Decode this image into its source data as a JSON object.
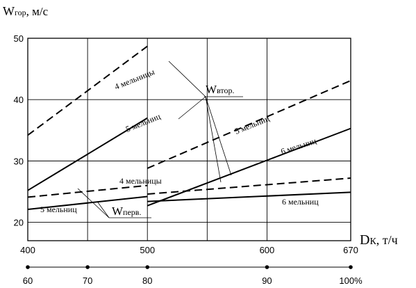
{
  "chart_data": {
    "type": "line",
    "ylabel_main": "W",
    "ylabel_sub": "гор",
    "ylabel_unit": ", м/с",
    "xlabel_main": "D",
    "xlabel_sub": "К",
    "xlabel_unit": ", т/ч",
    "xlim": [
      400,
      670
    ],
    "ylim": [
      17,
      50
    ],
    "x_ticks": [
      "400",
      "500",
      "600",
      "670"
    ],
    "x_tick_values": [
      400,
      500,
      600,
      670
    ],
    "y_ticks": [
      "50",
      "40",
      "30",
      "20"
    ],
    "y_tick_values": [
      50,
      40,
      30,
      20
    ],
    "vertical_gridlines": [
      400,
      450,
      500,
      550,
      600,
      670
    ],
    "secondary_axis": {
      "ticks": [
        "60",
        "70",
        "80",
        "90",
        "100%"
      ],
      "tick_positions": [
        400,
        450,
        500,
        600,
        670
      ]
    },
    "series": [
      {
        "name": "4 мельницы",
        "style": "dashed",
        "points": [
          [
            400,
            34.2
          ],
          [
            500,
            48.7
          ]
        ]
      },
      {
        "name": "5 мельниц",
        "style": "solid",
        "points": [
          [
            400,
            25.2
          ],
          [
            500,
            37.0
          ]
        ]
      },
      {
        "name": "4 мельницы",
        "style": "dashed",
        "points": [
          [
            400,
            24.1
          ],
          [
            500,
            26.0
          ]
        ]
      },
      {
        "name": "5 мельниц",
        "style": "solid",
        "points": [
          [
            400,
            22.1
          ],
          [
            500,
            24.2
          ]
        ]
      },
      {
        "name": "5 мельниц",
        "style": "dashed",
        "points": [
          [
            500,
            28.8
          ],
          [
            670,
            43.1
          ]
        ]
      },
      {
        "name": "6 мельниц",
        "style": "solid",
        "points": [
          [
            500,
            22.7
          ],
          [
            670,
            35.3
          ]
        ]
      },
      {
        "name": "",
        "style": "dashed",
        "points": [
          [
            500,
            24.6
          ],
          [
            670,
            27.2
          ]
        ]
      },
      {
        "name": "6 мельниц",
        "style": "solid",
        "points": [
          [
            500,
            23.4
          ],
          [
            670,
            24.9
          ]
        ]
      }
    ],
    "annotations": {
      "w_vtor_main": "W",
      "w_vtor_sub": "втор.",
      "w_perv_main": "W",
      "w_perv_sub": "перв.",
      "label_4m_upper": "4 мельницы",
      "label_5m_upper_left": "5 мельниц",
      "label_5m_upper_right": "5 мельниц",
      "label_6m_upper": "6 мельниц",
      "label_4m_lower": "4 мельницы",
      "label_5m_lower": "5 мельниц",
      "label_6m_lower": "6 мельниц"
    }
  }
}
